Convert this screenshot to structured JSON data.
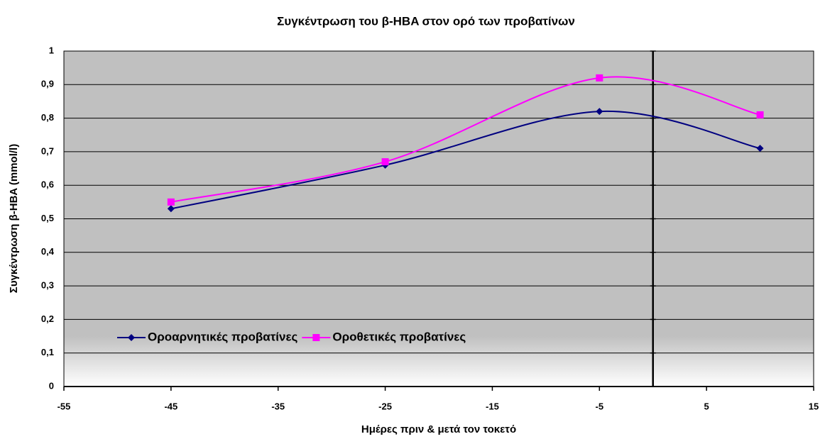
{
  "chart_data": {
    "type": "line",
    "title": "Συγκέντρωση του β-HBA στον ορό των προβατίνων",
    "x_label": "Ημέρες πριν & μετά τον τοκετό",
    "y_label": "Συγκέντρωση β-HBA (mmol/l)",
    "x": [
      -45,
      -25,
      -5,
      10
    ],
    "series": [
      {
        "name": "Οροαρνητικές προβατίνες",
        "color": "#000080",
        "marker": "diamond",
        "values": [
          0.53,
          0.66,
          0.82,
          0.71
        ]
      },
      {
        "name": "Οροθετικές προβατίνες",
        "color": "#ff00ff",
        "marker": "square",
        "values": [
          0.55,
          0.67,
          0.92,
          0.81
        ]
      }
    ],
    "xlim": [
      -55,
      15
    ],
    "xticks": [
      -55,
      -45,
      -35,
      -25,
      -15,
      -5,
      5,
      15
    ],
    "ylim": [
      0,
      1
    ],
    "yticks": [
      0,
      {
        "value": 0.1,
        "label": "0,1"
      },
      {
        "value": 0.2,
        "label": "0,2"
      },
      {
        "value": 0.3,
        "label": "0,3"
      },
      {
        "value": 0.4,
        "label": "0,4"
      },
      {
        "value": 0.5,
        "label": "0,5"
      },
      {
        "value": 0.6,
        "label": "0,6"
      },
      {
        "value": 0.7,
        "label": "0,7"
      },
      {
        "value": 0.8,
        "label": "0,8"
      },
      {
        "value": 0.9,
        "label": "0,9"
      },
      1
    ],
    "y_axis_crosses": 0,
    "smooth": true,
    "grid": true,
    "legend": "lower left"
  }
}
